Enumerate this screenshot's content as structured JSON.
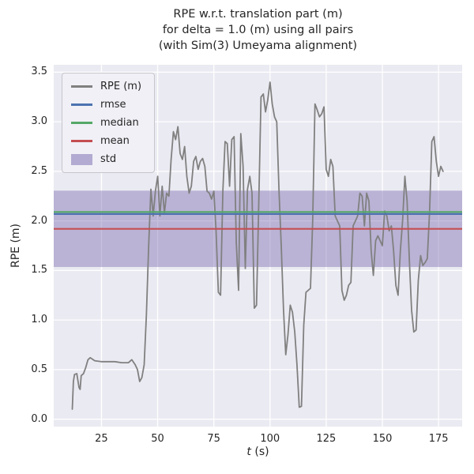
{
  "title_lines": [
    "RPE w.r.t. translation part (m)",
    "for delta = 1.0 (m) using all pairs",
    "(with Sim(3) Umeyama alignment)"
  ],
  "axes": {
    "xlabel_t": "t",
    "xlabel_units": " (s)",
    "ylabel": "RPE (m)"
  },
  "legend": {
    "items": [
      {
        "label": "RPE (m)",
        "type": "line",
        "color": "#808080"
      },
      {
        "label": "rmse",
        "type": "line",
        "color": "#4c72b0"
      },
      {
        "label": "median",
        "type": "line",
        "color": "#55a868"
      },
      {
        "label": "mean",
        "type": "line",
        "color": "#c44e52"
      },
      {
        "label": "std",
        "type": "patch",
        "color": "#8172b2"
      }
    ]
  },
  "chart_data": {
    "type": "line",
    "title": "RPE w.r.t. translation part (m) for delta = 1.0 (m) using all pairs (with Sim(3) Umeyama alignment)",
    "xlabel": "t (s)",
    "ylabel": "RPE (m)",
    "xlim": [
      3.75,
      185.5
    ],
    "ylim": [
      -0.075,
      3.575
    ],
    "x_ticks": [
      25,
      50,
      75,
      100,
      125,
      150,
      175
    ],
    "y_ticks": [
      0.0,
      0.5,
      1.0,
      1.5,
      2.0,
      2.5,
      3.0,
      3.5
    ],
    "grid": true,
    "legend_position": "upper left",
    "background": "#eaeaf2",
    "gridline_color": "#ffffff",
    "series": [
      {
        "name": "RPE (m)",
        "color": "#808080",
        "x": [
          12,
          12.5,
          13,
          14,
          15,
          15.5,
          16,
          17,
          18,
          19,
          20,
          22,
          25,
          28,
          31,
          34,
          37,
          38.5,
          40,
          41,
          42,
          43,
          44,
          45,
          46,
          47,
          48,
          49,
          50,
          51,
          52,
          53,
          54,
          55,
          56,
          57,
          58,
          59,
          60,
          61,
          62,
          63,
          64,
          65,
          66,
          67,
          68,
          69,
          70,
          71,
          72,
          73,
          74,
          75,
          76,
          77,
          78,
          79,
          80,
          81,
          82,
          83,
          84,
          85,
          86,
          87,
          88,
          89,
          90,
          91,
          92,
          93,
          94,
          95,
          96,
          97,
          98,
          99,
          100,
          101,
          102,
          103,
          104,
          105,
          106,
          107,
          108,
          109,
          110,
          111,
          112,
          113,
          114,
          115,
          116,
          117,
          118,
          119,
          120,
          121,
          122,
          123,
          124,
          125,
          126,
          127,
          128,
          129,
          130,
          131,
          132,
          133,
          134,
          135,
          136,
          137,
          138,
          139,
          140,
          141,
          142,
          143,
          144,
          145,
          146,
          147,
          148,
          149,
          150,
          151,
          152,
          153,
          154,
          155,
          156,
          157,
          158,
          159,
          160,
          161,
          162,
          163,
          164,
          165,
          166,
          167,
          168,
          169,
          170,
          171,
          172,
          173,
          174,
          175,
          176,
          177
        ],
        "y": [
          0.1,
          0.38,
          0.45,
          0.46,
          0.32,
          0.3,
          0.44,
          0.46,
          0.52,
          0.6,
          0.62,
          0.59,
          0.58,
          0.58,
          0.58,
          0.57,
          0.57,
          0.6,
          0.55,
          0.5,
          0.38,
          0.42,
          0.55,
          1.05,
          1.75,
          2.32,
          2.05,
          2.3,
          2.45,
          2.05,
          2.35,
          2.08,
          2.28,
          2.25,
          2.62,
          2.9,
          2.82,
          2.95,
          2.68,
          2.62,
          2.75,
          2.45,
          2.28,
          2.35,
          2.6,
          2.65,
          2.52,
          2.6,
          2.63,
          2.55,
          2.3,
          2.28,
          2.22,
          2.3,
          1.9,
          1.28,
          1.25,
          2.3,
          2.8,
          2.78,
          2.35,
          2.82,
          2.85,
          1.78,
          1.3,
          2.88,
          2.55,
          1.52,
          2.32,
          2.45,
          2.28,
          1.12,
          1.15,
          2.2,
          3.25,
          3.28,
          3.1,
          3.22,
          3.4,
          3.18,
          3.05,
          3.0,
          2.3,
          1.75,
          1.1,
          0.65,
          0.85,
          1.15,
          1.08,
          0.88,
          0.55,
          0.12,
          0.13,
          0.95,
          1.28,
          1.3,
          1.32,
          2.0,
          3.18,
          3.12,
          3.05,
          3.08,
          3.15,
          2.52,
          2.45,
          2.62,
          2.55,
          2.05,
          2.0,
          1.95,
          1.3,
          1.2,
          1.25,
          1.35,
          1.38,
          1.95,
          2.0,
          2.05,
          2.28,
          2.25,
          1.95,
          2.28,
          2.2,
          1.7,
          1.45,
          1.8,
          1.85,
          1.8,
          1.75,
          2.1,
          2.05,
          1.9,
          1.95,
          1.7,
          1.35,
          1.25,
          1.7,
          2.0,
          2.45,
          2.2,
          1.6,
          1.1,
          0.88,
          0.9,
          1.4,
          1.65,
          1.55,
          1.58,
          1.62,
          2.1,
          2.8,
          2.85,
          2.6,
          2.45,
          2.55,
          2.5
        ]
      }
    ],
    "stat_lines": [
      {
        "name": "rmse",
        "color": "#4c72b0",
        "value": 2.07
      },
      {
        "name": "median",
        "color": "#55a868",
        "value": 2.09
      },
      {
        "name": "mean",
        "color": "#c44e52",
        "value": 1.92
      }
    ],
    "band": {
      "name": "std",
      "color": "#8172b2",
      "low": 1.535,
      "high": 2.305
    }
  }
}
